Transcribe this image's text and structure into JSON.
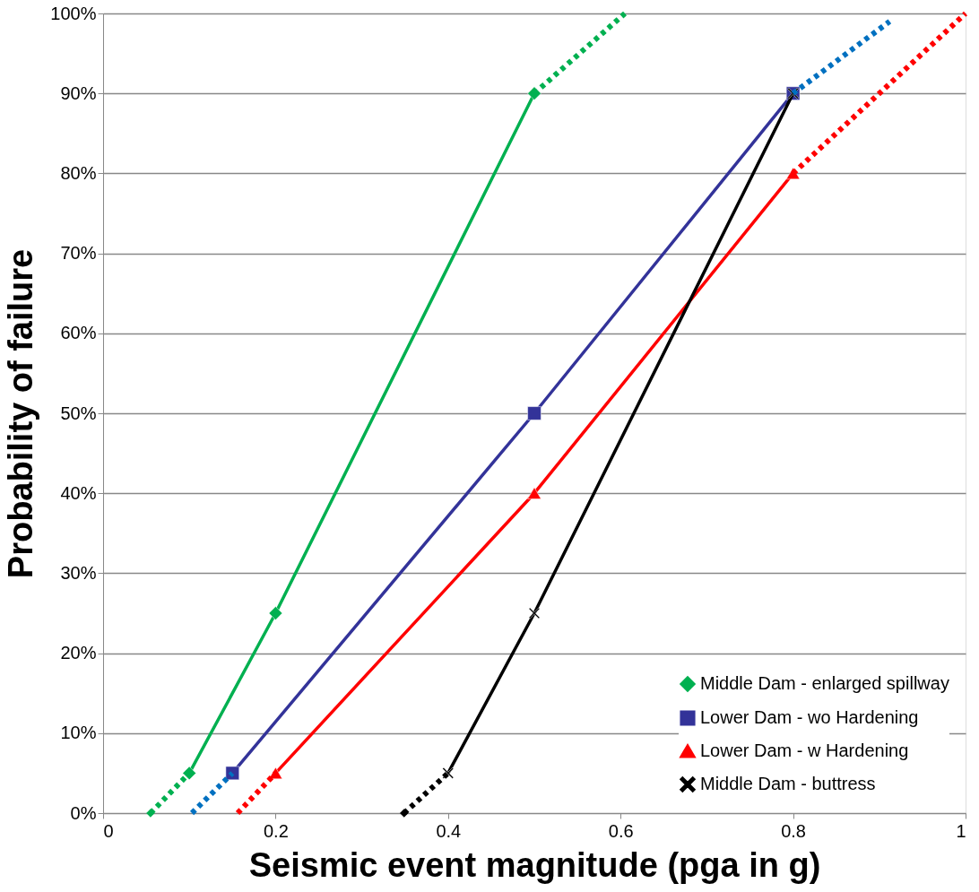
{
  "chart_data": {
    "type": "line",
    "xlabel": "Seismic event magnitude (pga in g)",
    "ylabel": "Probability of failure",
    "xlim": [
      0,
      1
    ],
    "xticks": [
      0,
      0.2,
      0.4,
      0.6,
      0.8,
      1
    ],
    "ylim": [
      0,
      100
    ],
    "yticks": [
      {
        "value": 0,
        "label": "0%"
      },
      {
        "value": 10,
        "label": "10%"
      },
      {
        "value": 20,
        "label": "20%"
      },
      {
        "value": 30,
        "label": "30%"
      },
      {
        "value": 40,
        "label": "40%"
      },
      {
        "value": 50,
        "label": "50%"
      },
      {
        "value": 60,
        "label": "60%"
      },
      {
        "value": 70,
        "label": "70%"
      },
      {
        "value": 80,
        "label": "80%"
      },
      {
        "value": 90,
        "label": "90%"
      },
      {
        "value": 100,
        "label": "100%"
      }
    ],
    "grid": "y",
    "legend": "bottom right",
    "series": [
      {
        "name": "Middle Dam - enlarged spillway",
        "color": "#00b050",
        "marker": "diamond",
        "line_style": "solid",
        "x": [
          0.1,
          0.2,
          0.5
        ],
        "values": [
          5,
          25,
          90
        ]
      },
      {
        "name": "Lower Dam - wo Hardening",
        "color": "#333399",
        "marker": "square",
        "line_style": "solid",
        "x": [
          0.15,
          0.5,
          0.8
        ],
        "values": [
          5,
          50,
          90
        ]
      },
      {
        "name": "Lower Dam - w Hardening",
        "color": "#ff0000",
        "marker": "triangle",
        "line_style": "solid",
        "x": [
          0.2,
          0.5,
          0.8
        ],
        "values": [
          5,
          40,
          80
        ]
      },
      {
        "name": "Middle Dam - buttress",
        "color": "#000000",
        "marker": "cross",
        "line_style": "solid",
        "x": [
          0.4,
          0.5,
          0.8
        ],
        "values": [
          5,
          25,
          90
        ]
      },
      {
        "color": "#00b050",
        "marker": "diamond",
        "line_style": "dotted",
        "x": [
          0.055,
          0.1
        ],
        "values": [
          0,
          5
        ]
      },
      {
        "color": "#00b050",
        "marker": "none",
        "line_style": "dotted",
        "x": [
          0.5,
          0.605
        ],
        "values": [
          90,
          100
        ]
      },
      {
        "color": "#0070c0",
        "marker": "none",
        "line_style": "dotted",
        "x": [
          0.103,
          0.15
        ],
        "values": [
          0,
          5
        ]
      },
      {
        "color": "#0070c0",
        "marker": "none",
        "line_style": "dotted",
        "x": [
          0.8,
          0.912
        ],
        "values": [
          90,
          99
        ]
      },
      {
        "color": "#ff0000",
        "marker": "none",
        "line_style": "dotted",
        "x": [
          0.156,
          0.2
        ],
        "values": [
          0,
          5
        ]
      },
      {
        "color": "#ff0000",
        "marker": "none",
        "line_style": "dotted",
        "x": [
          0.8,
          1.0
        ],
        "values": [
          80,
          100
        ]
      },
      {
        "color": "#000000",
        "marker": "diamond",
        "line_style": "dotted",
        "x": [
          0.349,
          0.4
        ],
        "values": [
          0,
          5
        ]
      }
    ]
  }
}
